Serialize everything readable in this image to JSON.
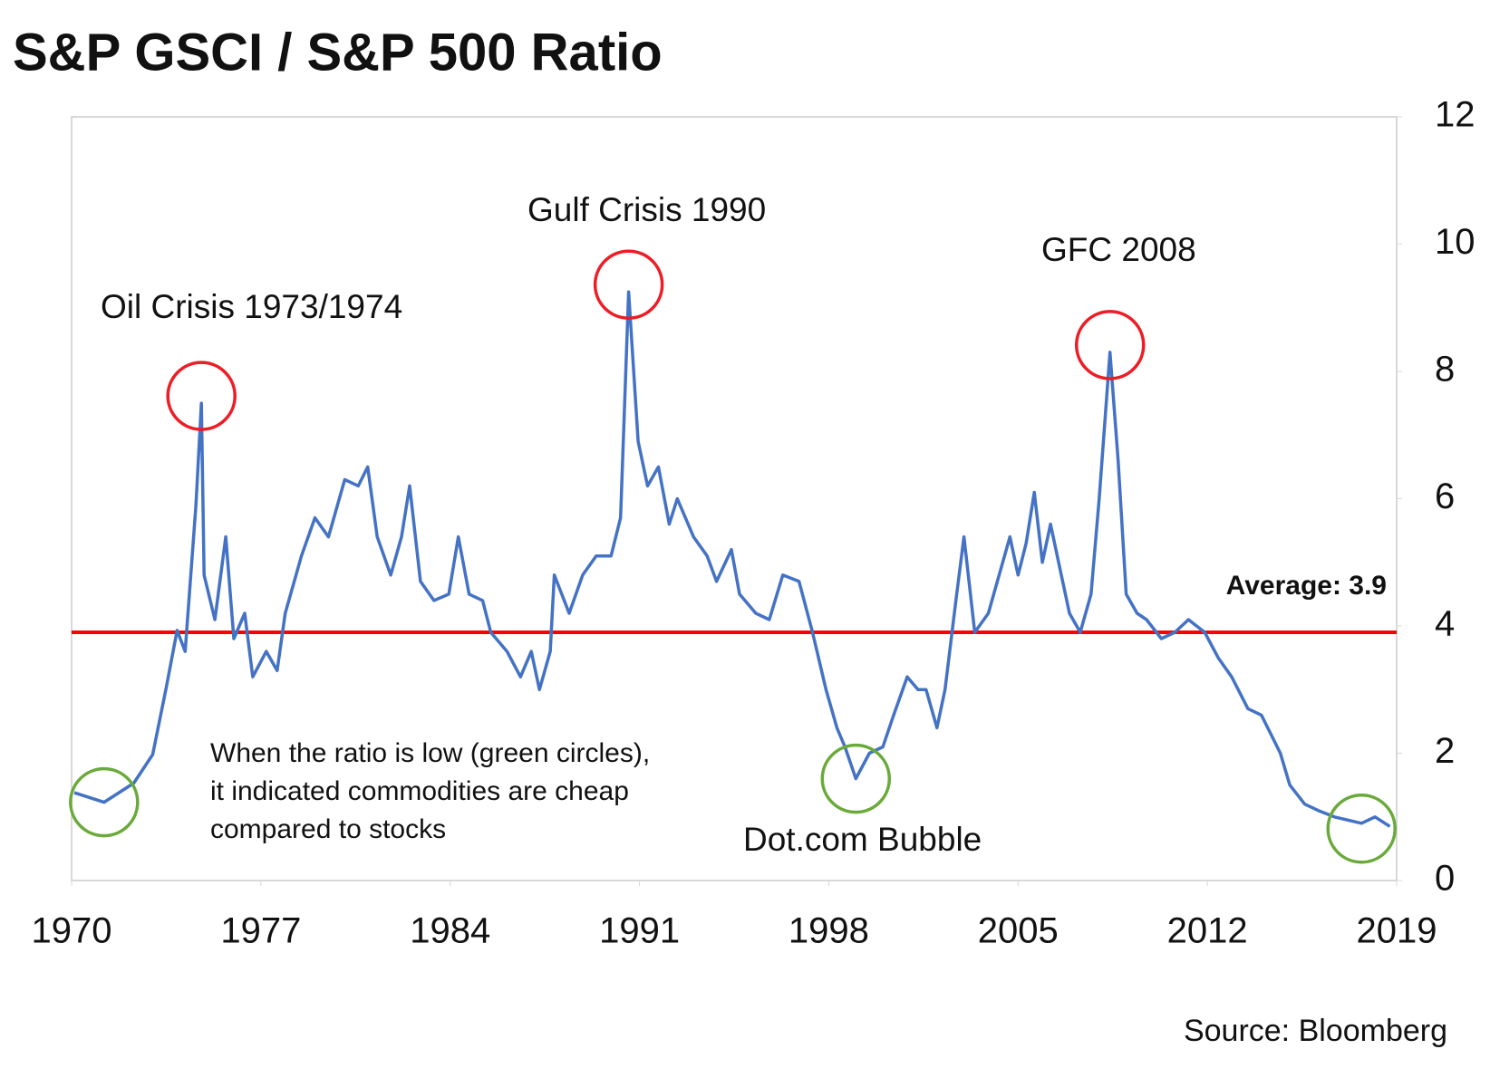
{
  "chart_data": {
    "type": "line",
    "title": "S&P GSCI / S&P 500 Ratio",
    "source": "Source: Bloomberg",
    "x": [
      1970.1,
      1971.2,
      1972.3,
      1973.0,
      1973.5,
      1973.9,
      1974.2,
      1974.6,
      1974.8,
      1974.9,
      1975.3,
      1975.7,
      1976.0,
      1976.4,
      1976.7,
      1977.2,
      1977.6,
      1977.9,
      1978.5,
      1979.0,
      1979.5,
      1980.1,
      1980.6,
      1980.95,
      1981.3,
      1981.8,
      1982.2,
      1982.5,
      1982.9,
      1983.4,
      1983.95,
      1984.3,
      1984.7,
      1985.2,
      1985.5,
      1986.1,
      1986.6,
      1987.0,
      1987.3,
      1987.7,
      1987.85,
      1988.4,
      1988.9,
      1989.4,
      1989.95,
      1990.3,
      1990.6,
      1990.95,
      1991.3,
      1991.7,
      1992.1,
      1992.4,
      1993.0,
      1993.5,
      1993.85,
      1994.4,
      1994.7,
      1995.3,
      1995.8,
      1996.3,
      1996.9,
      1997.4,
      1997.9,
      1998.3,
      1998.6,
      1999.0,
      1999.5,
      2000.0,
      2000.4,
      2000.9,
      2001.3,
      2001.6,
      2002.0,
      2002.3,
      2002.7,
      2003.0,
      2003.4,
      2003.9,
      2004.3,
      2004.7,
      2005.0,
      2005.3,
      2005.6,
      2005.9,
      2006.2,
      2006.6,
      2006.9,
      2007.3,
      2007.7,
      2008.0,
      2008.4,
      2008.7,
      2009.0,
      2009.4,
      2009.75,
      2010.3,
      2010.8,
      2011.3,
      2011.9,
      2012.4,
      2012.9,
      2013.5,
      2014.0,
      2014.7,
      2015.05,
      2015.6,
      2016.1,
      2016.7,
      2017.2,
      2017.7,
      2018.2,
      2018.75
    ],
    "series": [
      {
        "name": "S&P GSCI / S&P 500 Ratio",
        "color": "#4472c4",
        "values": [
          1.38,
          1.23,
          1.53,
          1.98,
          3.03,
          3.93,
          3.6,
          5.9,
          7.5,
          4.8,
          4.1,
          5.4,
          3.8,
          4.2,
          3.2,
          3.6,
          3.3,
          4.2,
          5.1,
          5.7,
          5.4,
          6.3,
          6.2,
          6.5,
          5.4,
          4.8,
          5.4,
          6.2,
          4.7,
          4.4,
          4.5,
          5.4,
          4.5,
          4.4,
          3.9,
          3.6,
          3.2,
          3.6,
          3.0,
          3.6,
          4.8,
          4.2,
          4.8,
          5.1,
          5.1,
          5.7,
          9.25,
          6.9,
          6.2,
          6.5,
          5.6,
          6.0,
          5.4,
          5.1,
          4.7,
          5.2,
          4.5,
          4.2,
          4.1,
          4.8,
          4.7,
          3.9,
          3.0,
          2.4,
          2.1,
          1.6,
          2.0,
          2.1,
          2.6,
          3.2,
          3.0,
          3.0,
          2.4,
          3.0,
          4.4,
          5.4,
          3.9,
          4.2,
          4.8,
          5.4,
          4.8,
          5.3,
          6.1,
          5.0,
          5.6,
          4.8,
          4.2,
          3.9,
          4.5,
          6.0,
          8.3,
          6.6,
          4.5,
          4.2,
          4.1,
          3.8,
          3.9,
          4.1,
          3.9,
          3.5,
          3.2,
          2.7,
          2.6,
          2.0,
          1.5,
          1.2,
          1.1,
          1.0,
          0.95,
          0.9,
          1.0,
          0.85
        ]
      }
    ],
    "xlim": [
      1970,
      2019
    ],
    "xticks": [
      1970,
      1977,
      1984,
      1991,
      1998,
      2005,
      2012,
      2019
    ],
    "ylim": [
      0,
      12
    ],
    "yticks": [
      0,
      2,
      4,
      6,
      8,
      10,
      12
    ],
    "y_axis_side": "right",
    "average": {
      "value": 3.9,
      "label": "Average: 3.9",
      "color": "#ff0000"
    },
    "annotations": [
      "Oil Crisis 1973/1974",
      "Gulf Crisis 1990",
      "GFC 2008",
      "Dot.com Bubble"
    ],
    "note": [
      "When the ratio is low (green circles),",
      "it indicated commodities are cheap",
      "compared to stocks"
    ]
  }
}
